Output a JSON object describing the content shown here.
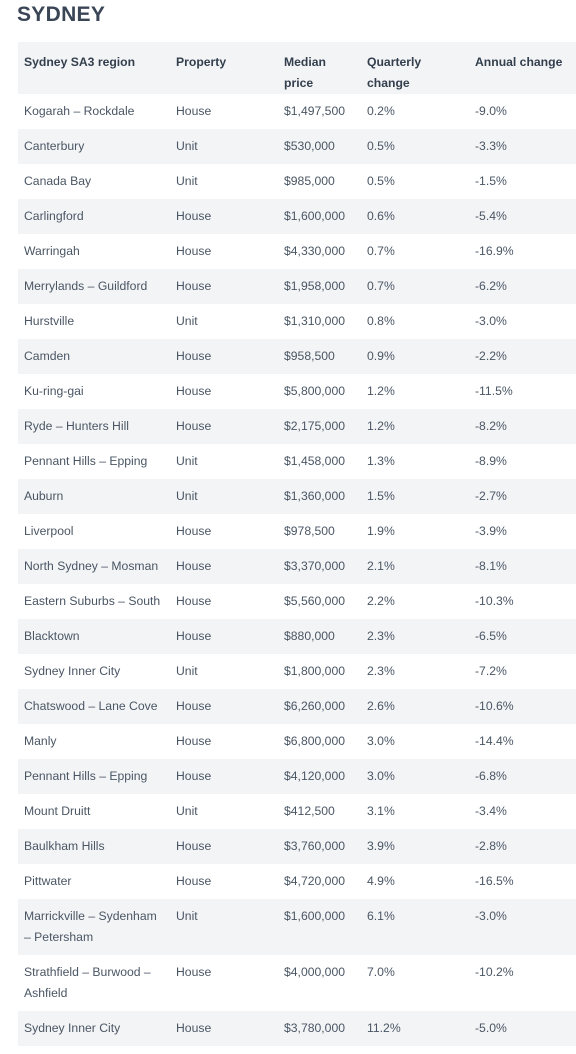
{
  "title": "SYDNEY",
  "table": {
    "headers": [
      "Sydney SA3 region",
      "Property",
      "Median price",
      "Quarterly change",
      "Annual change"
    ],
    "rows": [
      [
        "Kogarah – Rockdale",
        "House",
        "$1,497,500",
        "0.2%",
        "-9.0%"
      ],
      [
        "Canterbury",
        "Unit",
        "$530,000",
        "0.5%",
        "-3.3%"
      ],
      [
        "Canada Bay",
        "Unit",
        "$985,000",
        "0.5%",
        "-1.5%"
      ],
      [
        "Carlingford",
        "House",
        "$1,600,000",
        "0.6%",
        "-5.4%"
      ],
      [
        "Warringah",
        "House",
        "$4,330,000",
        "0.7%",
        "-16.9%"
      ],
      [
        "Merrylands – Guildford",
        "House",
        "$1,958,000",
        "0.7%",
        "-6.2%"
      ],
      [
        "Hurstville",
        "Unit",
        "$1,310,000",
        "0.8%",
        "-3.0%"
      ],
      [
        "Camden",
        "House",
        "$958,500",
        "0.9%",
        "-2.2%"
      ],
      [
        "Ku-ring-gai",
        "House",
        "$5,800,000",
        "1.2%",
        "-11.5%"
      ],
      [
        "Ryde – Hunters Hill",
        "House",
        "$2,175,000",
        "1.2%",
        "-8.2%"
      ],
      [
        "Pennant Hills – Epping",
        "Unit",
        "$1,458,000",
        "1.3%",
        "-8.9%"
      ],
      [
        "Auburn",
        "Unit",
        "$1,360,000",
        "1.5%",
        "-2.7%"
      ],
      [
        "Liverpool",
        "House",
        "$978,500",
        "1.9%",
        "-3.9%"
      ],
      [
        "North Sydney – Mosman",
        "House",
        "$3,370,000",
        "2.1%",
        "-8.1%"
      ],
      [
        "Eastern Suburbs – South",
        "House",
        "$5,560,000",
        "2.2%",
        "-10.3%"
      ],
      [
        "Blacktown",
        "House",
        "$880,000",
        "2.3%",
        "-6.5%"
      ],
      [
        "Sydney Inner City",
        "Unit",
        "$1,800,000",
        "2.3%",
        "-7.2%"
      ],
      [
        "Chatswood – Lane Cove",
        "House",
        "$6,260,000",
        "2.6%",
        "-10.6%"
      ],
      [
        "Manly",
        "House",
        "$6,800,000",
        "3.0%",
        "-14.4%"
      ],
      [
        "Pennant Hills – Epping",
        "House",
        "$4,120,000",
        "3.0%",
        "-6.8%"
      ],
      [
        "Mount Druitt",
        "Unit",
        "$412,500",
        "3.1%",
        "-3.4%"
      ],
      [
        "Baulkham Hills",
        "House",
        "$3,760,000",
        "3.9%",
        "-2.8%"
      ],
      [
        "Pittwater",
        "House",
        "$4,720,000",
        "4.9%",
        "-16.5%"
      ],
      [
        "Marrickville – Sydenham – Petersham",
        "Unit",
        "$1,600,000",
        "6.1%",
        "-3.0%"
      ],
      [
        "Strathfield – Burwood – Ashfield",
        "House",
        "$4,000,000",
        "7.0%",
        "-10.2%"
      ],
      [
        "Sydney Inner City",
        "House",
        "$3,780,000",
        "11.2%",
        "-5.0%"
      ]
    ]
  }
}
